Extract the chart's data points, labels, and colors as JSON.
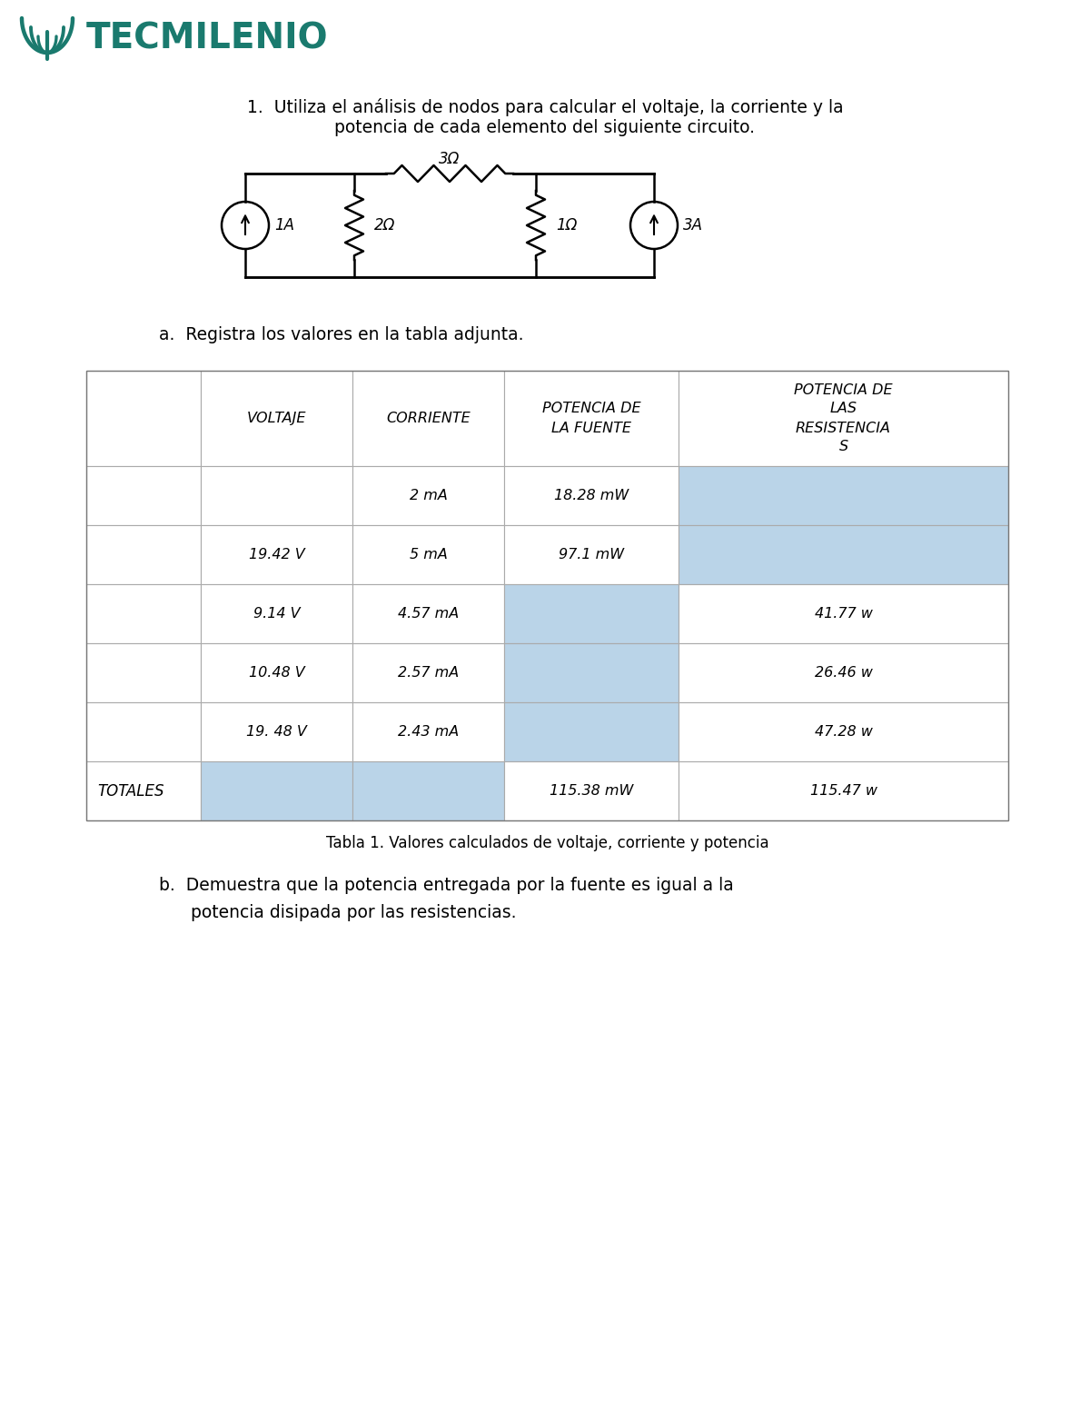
{
  "logo_color": "#1a7a6e",
  "logo_text": "TECMILENIO",
  "question_line1": "1.  Utiliza el análisis de nodos para calcular el voltaje, la corriente y la",
  "question_line2": "potencia de cada elemento del siguiente circuito.",
  "part_a_text": "a.  Registra los valores en la tabla adjunta.",
  "part_b_line1": "b.  Demuestra que la potencia entregada por la fuente es igual a la",
  "part_b_line2": "potencia disipada por las resistencias.",
  "table_caption": "Tabla 1. Valores calculados de voltaje, corriente y potencia",
  "cell_bg_blue": "#bad4e8",
  "cell_bg_normal": "#ffffff",
  "background": "#ffffff"
}
